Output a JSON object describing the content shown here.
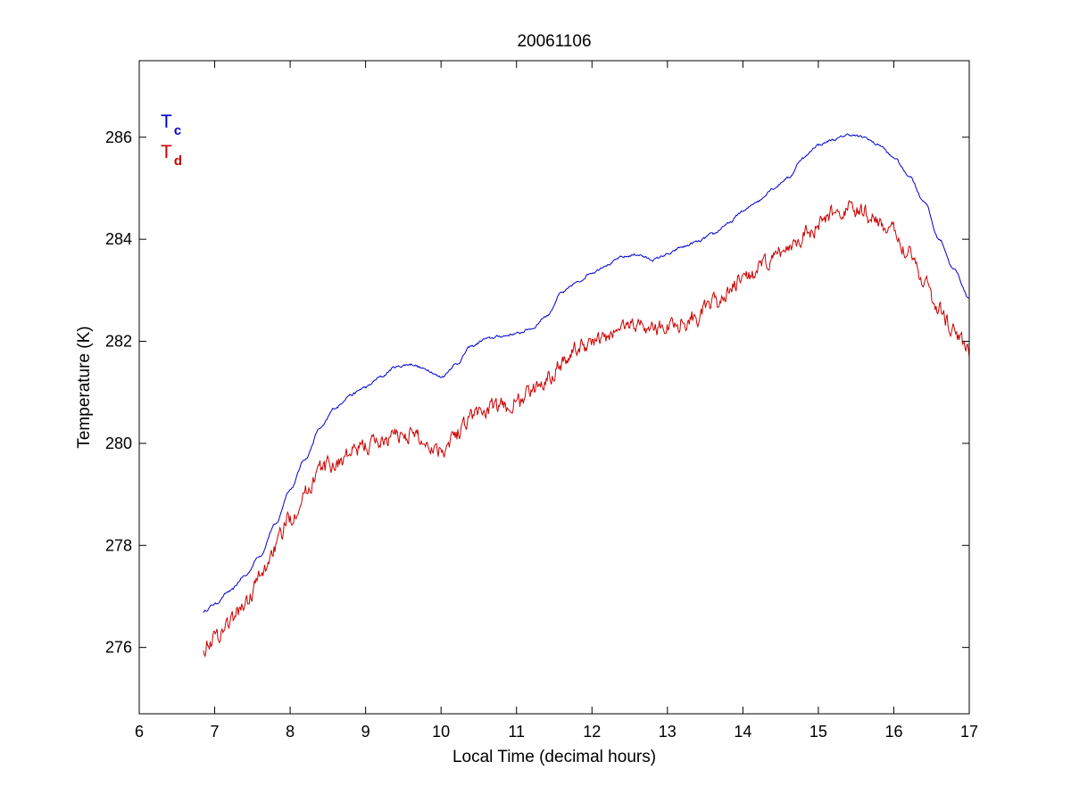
{
  "chart_data": {
    "type": "line",
    "title": "20061106",
    "xlabel": "Local Time (decimal hours)",
    "ylabel": "Temperature (K)",
    "xlim": [
      6,
      17
    ],
    "ylim": [
      274.7,
      287.5
    ],
    "xticks": [
      6,
      7,
      8,
      9,
      10,
      11,
      12,
      13,
      14,
      15,
      16,
      17
    ],
    "yticks": [
      276,
      278,
      280,
      282,
      284,
      286
    ],
    "grid": false,
    "legend_position": "top-left",
    "series": [
      {
        "name": "T",
        "subscript": "c",
        "color": "#0000cc",
        "noise": 0.02,
        "x": [
          6.85,
          7.0,
          7.2,
          7.4,
          7.6,
          7.8,
          8.0,
          8.2,
          8.4,
          8.6,
          8.8,
          9.0,
          9.2,
          9.4,
          9.6,
          9.8,
          10.0,
          10.2,
          10.4,
          10.6,
          10.8,
          11.0,
          11.2,
          11.4,
          11.6,
          11.8,
          12.0,
          12.2,
          12.4,
          12.6,
          12.8,
          13.0,
          13.2,
          13.4,
          13.6,
          13.8,
          14.0,
          14.2,
          14.4,
          14.6,
          14.8,
          15.0,
          15.2,
          15.4,
          15.6,
          15.8,
          16.0,
          16.2,
          16.4,
          16.6,
          16.8,
          17.0
        ],
        "y": [
          276.7,
          276.85,
          277.1,
          277.4,
          277.8,
          278.4,
          279.1,
          279.7,
          280.3,
          280.7,
          280.95,
          281.1,
          281.3,
          281.5,
          281.55,
          281.45,
          281.3,
          281.55,
          281.9,
          282.05,
          282.1,
          282.15,
          282.25,
          282.5,
          282.95,
          283.15,
          283.35,
          283.5,
          283.65,
          283.7,
          283.6,
          283.7,
          283.85,
          283.95,
          284.1,
          284.3,
          284.55,
          284.75,
          285.0,
          285.2,
          285.6,
          285.85,
          285.95,
          286.05,
          286.0,
          285.85,
          285.6,
          285.25,
          284.75,
          284.0,
          283.4,
          282.85
        ]
      },
      {
        "name": "T",
        "subscript": "d",
        "color": "#cc0000",
        "noise": 0.14,
        "x": [
          6.85,
          7.0,
          7.2,
          7.4,
          7.6,
          7.8,
          8.0,
          8.2,
          8.4,
          8.6,
          8.8,
          9.0,
          9.2,
          9.4,
          9.6,
          9.8,
          10.0,
          10.2,
          10.4,
          10.6,
          10.8,
          11.0,
          11.2,
          11.4,
          11.6,
          11.8,
          12.0,
          12.2,
          12.4,
          12.6,
          12.8,
          13.0,
          13.2,
          13.4,
          13.6,
          13.8,
          14.0,
          14.2,
          14.4,
          14.6,
          14.8,
          15.0,
          15.2,
          15.4,
          15.6,
          15.8,
          16.0,
          16.2,
          16.4,
          16.6,
          16.8,
          17.0
        ],
        "y": [
          276.05,
          276.2,
          276.5,
          276.85,
          277.35,
          277.95,
          278.55,
          279.05,
          279.5,
          279.6,
          279.8,
          279.95,
          280.05,
          280.15,
          280.2,
          280.0,
          279.9,
          280.2,
          280.55,
          280.65,
          280.7,
          280.8,
          281.0,
          281.3,
          281.6,
          281.85,
          282.0,
          282.05,
          282.3,
          282.35,
          282.25,
          282.3,
          282.4,
          282.5,
          282.7,
          282.95,
          283.2,
          283.4,
          283.6,
          283.85,
          284.1,
          284.25,
          284.5,
          284.6,
          284.5,
          284.35,
          284.1,
          283.8,
          283.2,
          282.6,
          282.2,
          281.8
        ]
      }
    ]
  }
}
